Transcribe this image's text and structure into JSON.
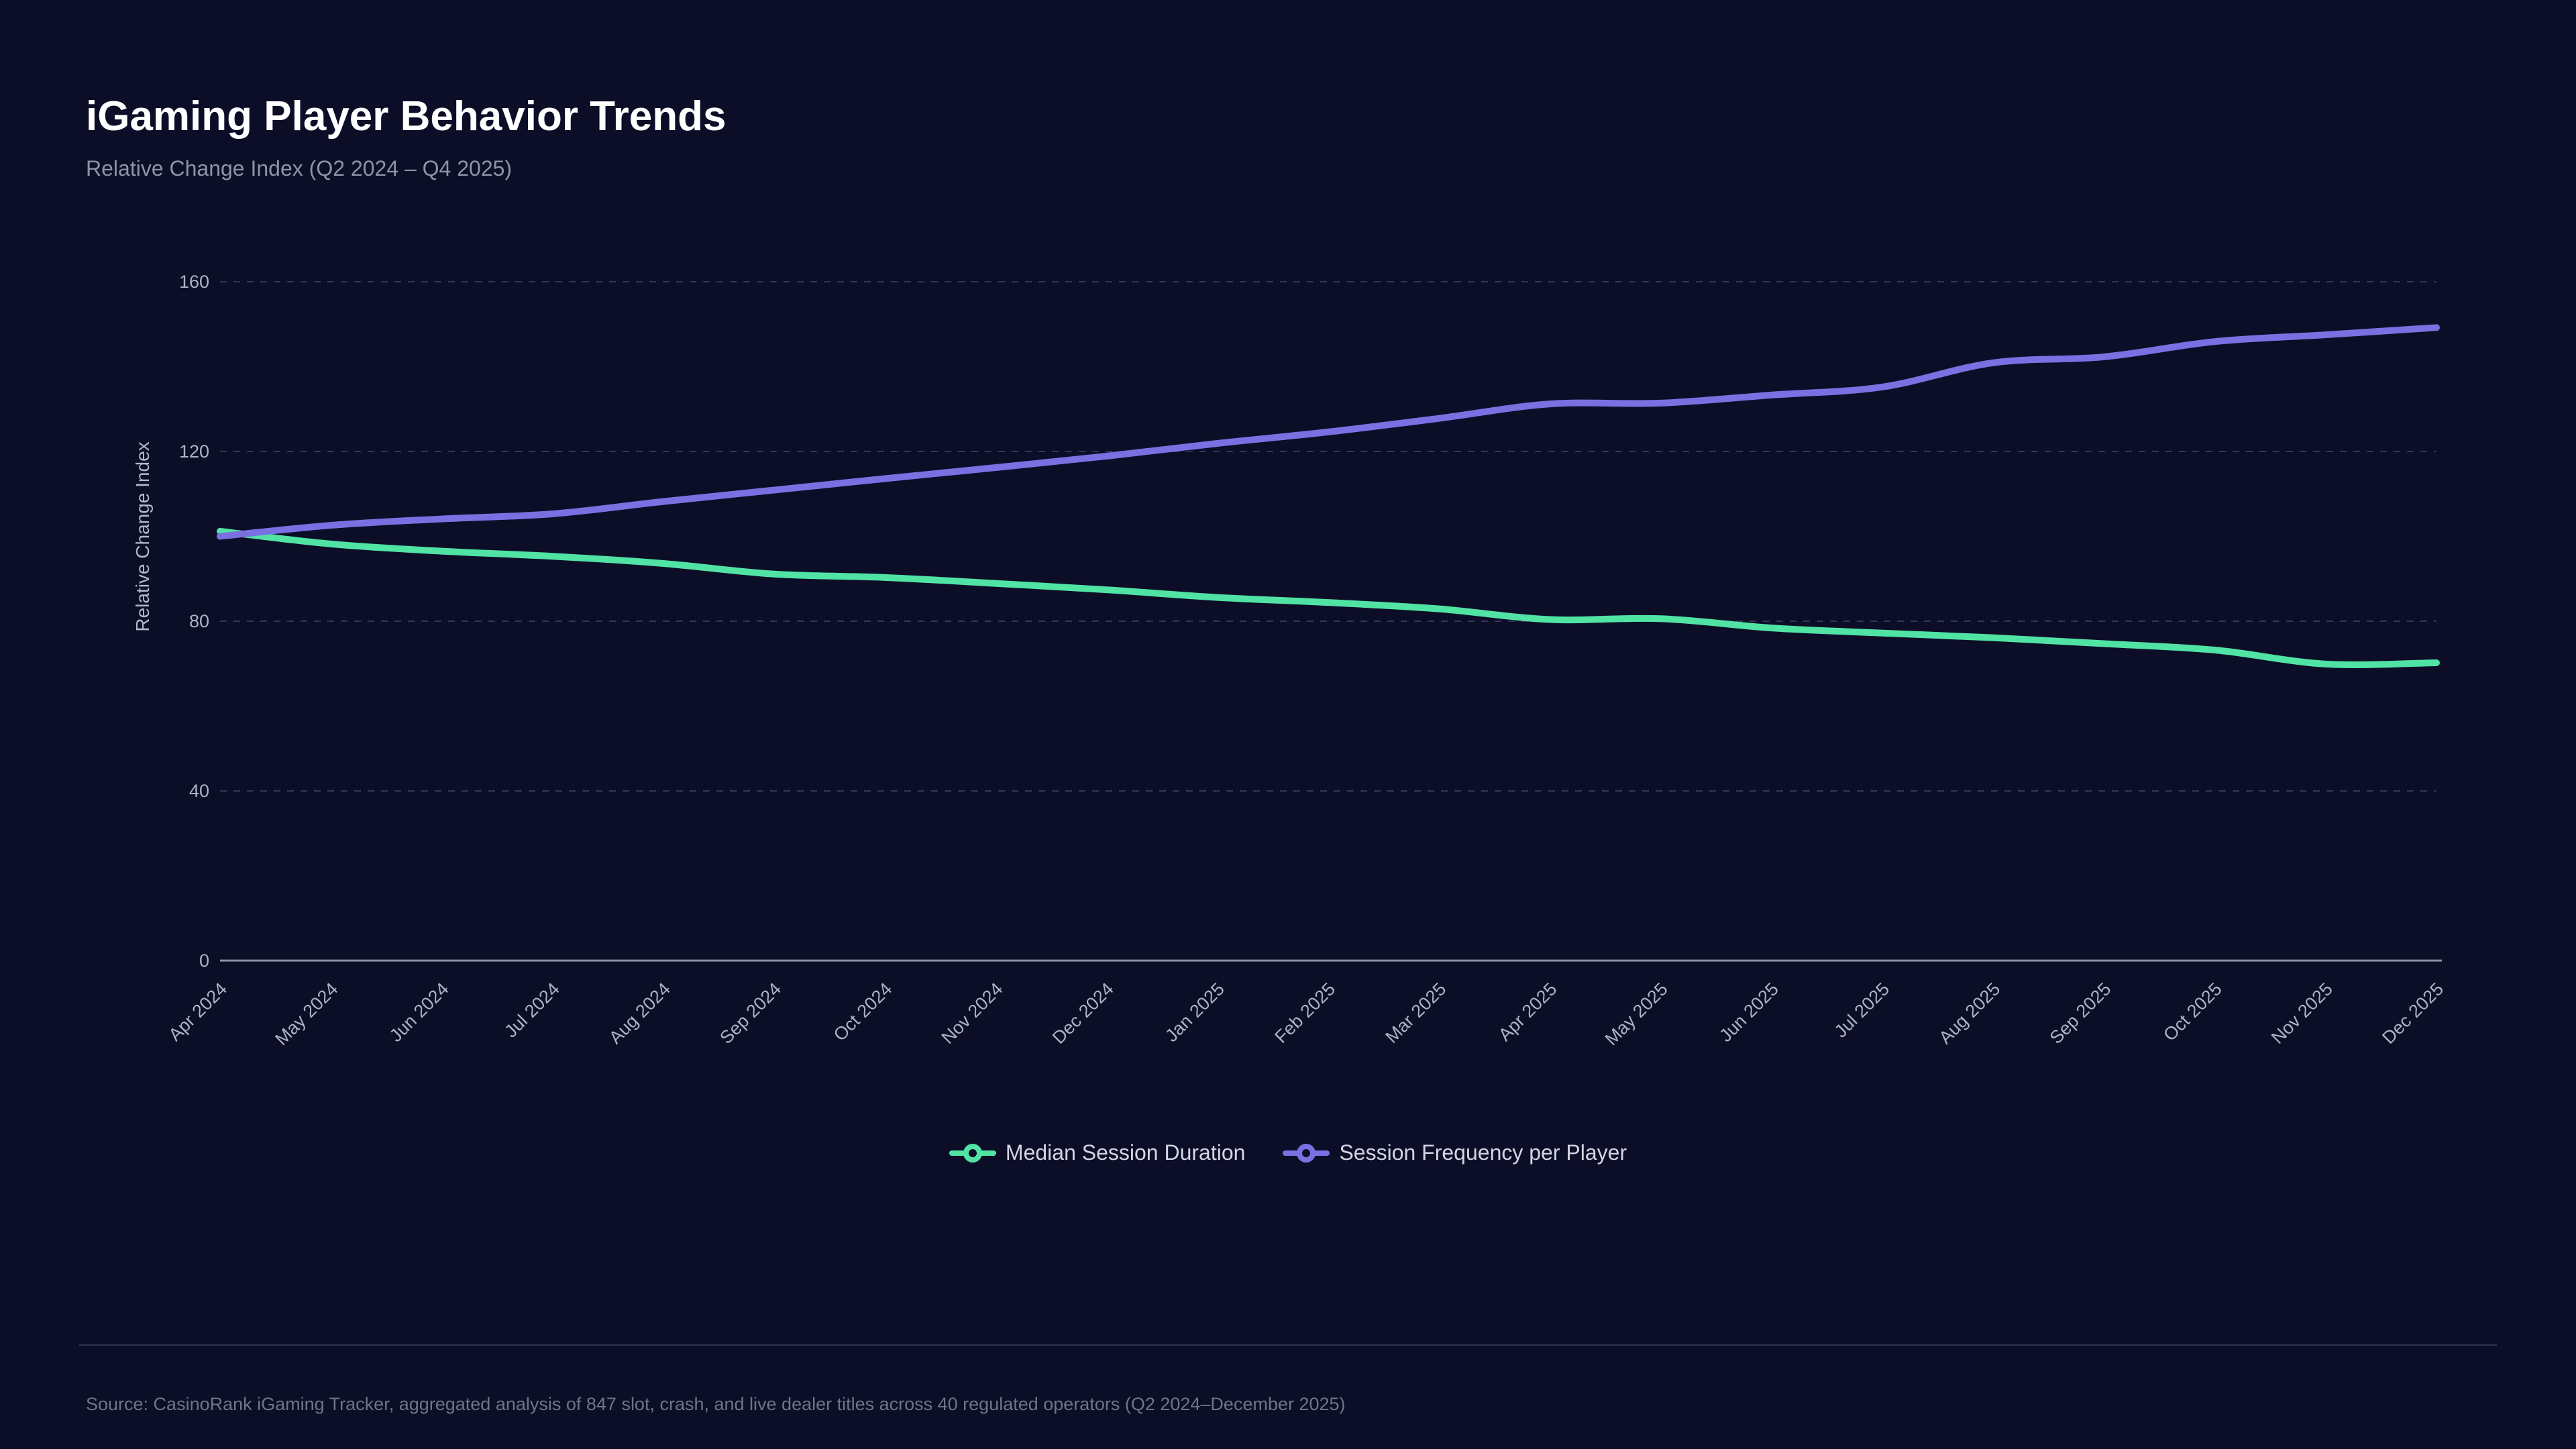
{
  "header": {
    "title": "iGaming Player Behavior Trends",
    "subtitle": "Relative Change Index (Q2 2024 – Q4 2025)"
  },
  "footer": {
    "source": "Source: CasinoRank iGaming Tracker, aggregated analysis of 847 slot, crash, and live dealer titles across 40 regulated operators (Q2 2024–December 2025)"
  },
  "theme": {
    "background": "#0c0e28",
    "title_color": "#ffffff",
    "subtitle_color": "#8f93a8",
    "tick_label_color": "#aeb2c2",
    "axis_title_color": "#b4b8c8",
    "gridline_color": "#343757",
    "axis_line_color": "#8b90a4",
    "legend_text_color": "#d3d6e2",
    "source_color": "#6f7489"
  },
  "chart_data": {
    "type": "line",
    "title": "iGaming Player Behavior Trends",
    "subtitle": "Relative Change Index (Q2 2024 – Q4 2025)",
    "xlabel": "",
    "ylabel": "Relative Change Index",
    "ylim": [
      0,
      160
    ],
    "yticks": [
      0,
      40,
      80,
      120,
      160
    ],
    "grid": "horizontal-dashed",
    "legend_position": "bottom",
    "smooth": true,
    "categories": [
      "Apr 2024",
      "May 2024",
      "Jun 2024",
      "Jul 2024",
      "Aug 2024",
      "Sep 2024",
      "Oct 2024",
      "Nov 2024",
      "Dec 2024",
      "Jan 2025",
      "Feb 2025",
      "Mar 2025",
      "Apr 2025",
      "May 2025",
      "Jun 2025",
      "Jul 2025",
      "Aug 2025",
      "Sep 2025",
      "Oct 2025",
      "Nov 2025",
      "Dec 2025"
    ],
    "series": [
      {
        "name": "Median Session Duration",
        "color": "#50e3a4",
        "values": [
          101.2,
          98.2,
          96.5,
          95.3,
          93.6,
          91.1,
          90.3,
          88.9,
          87.4,
          85.6,
          84.4,
          82.9,
          80.4,
          80.6,
          78.4,
          77.2,
          76.1,
          74.7,
          73.2,
          69.9,
          70.2
        ]
      },
      {
        "name": "Session Frequency per Player",
        "color": "#7b70e2",
        "values": [
          100.0,
          102.6,
          104.1,
          105.3,
          108.2,
          110.9,
          113.6,
          116.2,
          118.9,
          121.9,
          124.6,
          127.8,
          131.2,
          131.4,
          133.3,
          135.2,
          140.9,
          142.3,
          145.9,
          147.5,
          149.2
        ]
      }
    ]
  }
}
